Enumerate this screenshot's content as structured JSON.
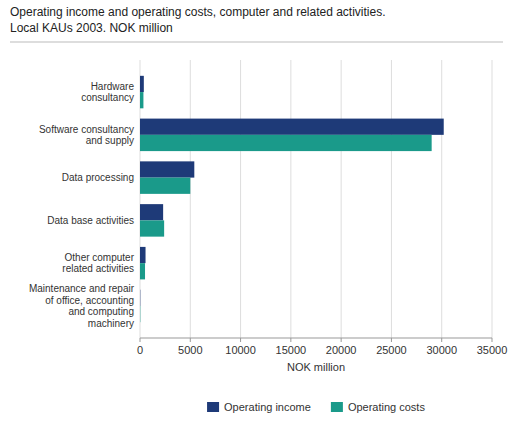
{
  "chart_data": {
    "type": "bar",
    "orientation": "horizontal",
    "title": "Operating income and operating costs, computer and related activities.",
    "subtitle": "Local KAUs 2003. NOK million",
    "categories": [
      "Maintenance and repair\nof office, accounting\nand computing\nmachinery",
      "Other computer\nrelated activities",
      "Data base activities",
      "Data processing",
      "Software consultancy\nand supply",
      "Hardware\nconsultancy"
    ],
    "series": [
      {
        "name": "Operating income",
        "color": "#1e3a78",
        "values": [
          30,
          550,
          2300,
          5400,
          30200,
          380
        ]
      },
      {
        "name": "Operating costs",
        "color": "#1a9a8a",
        "values": [
          30,
          500,
          2400,
          5000,
          29000,
          340
        ]
      }
    ],
    "xlabel": "NOK million",
    "xlim": [
      0,
      35000
    ],
    "xticks": [
      0,
      5000,
      10000,
      15000,
      20000,
      25000,
      30000,
      35000
    ],
    "grid": true,
    "legend": "bottom"
  }
}
